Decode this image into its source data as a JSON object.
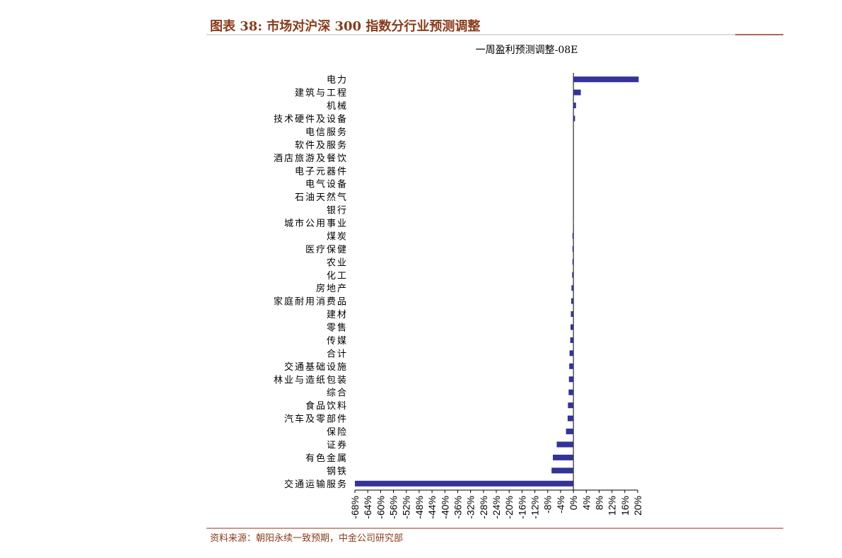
{
  "chart_data": {
    "type": "barh",
    "title": "图表 38:  市场对沪深 300 指数分行业预测调整",
    "subtitle": "一周盈利预测调整-08E",
    "source": "资料来源：朝阳永续一致预期，中金公司研究部",
    "categories": [
      "电力",
      "建筑与工程",
      "机械",
      "技术硬件及设备",
      "电信服务",
      "软件及服务",
      "酒店旅游及餐饮",
      "电子元器件",
      "电气设备",
      "石油天然气",
      "银行",
      "城市公用事业",
      "煤炭",
      "医疗保健",
      "农业",
      "化工",
      "房地产",
      "家庭耐用消费品",
      "建材",
      "零售",
      "传媒",
      "合计",
      "交通基础设施",
      "林业与造纸包装",
      "综合",
      "食品饮料",
      "汽车及零部件",
      "保险",
      "证券",
      "有色金属",
      "钢铁",
      "交通运输服务"
    ],
    "values": [
      20.3,
      2.3,
      0.8,
      0.5,
      0,
      0,
      0,
      0,
      0,
      0,
      0,
      -0.1,
      -0.3,
      -0.3,
      -0.3,
      -0.4,
      -0.6,
      -0.7,
      -0.8,
      -0.9,
      -1.0,
      -1.2,
      -1.3,
      -1.4,
      -1.5,
      -1.7,
      -1.8,
      -2.3,
      -5.2,
      -6.4,
      -6.8,
      -68
    ],
    "color": "#333399",
    "xlim": [
      -68,
      20
    ],
    "xticks": [
      {
        "value": -68,
        "label": "-68%"
      },
      {
        "value": -64,
        "label": "-64%"
      },
      {
        "value": -60,
        "label": "-60%"
      },
      {
        "value": -56,
        "label": "-56%"
      },
      {
        "value": -52,
        "label": "-52%"
      },
      {
        "value": -48,
        "label": "-48%"
      },
      {
        "value": -44,
        "label": "-44%"
      },
      {
        "value": -40,
        "label": "-40%"
      },
      {
        "value": -36,
        "label": "-36%"
      },
      {
        "value": -32,
        "label": "-32%"
      },
      {
        "value": -28,
        "label": "-28%"
      },
      {
        "value": -24,
        "label": "-24%"
      },
      {
        "value": -20,
        "label": "-20%"
      },
      {
        "value": -16,
        "label": "-16%"
      },
      {
        "value": -12,
        "label": "-12%"
      },
      {
        "value": -8,
        "label": "-8%"
      },
      {
        "value": -4,
        "label": "-4%"
      },
      {
        "value": 0,
        "label": "0%"
      },
      {
        "value": 4,
        "label": "4%"
      },
      {
        "value": 8,
        "label": "8%"
      },
      {
        "value": 12,
        "label": "12%"
      },
      {
        "value": 16,
        "label": "16%"
      },
      {
        "value": 20,
        "label": "20%"
      }
    ]
  }
}
